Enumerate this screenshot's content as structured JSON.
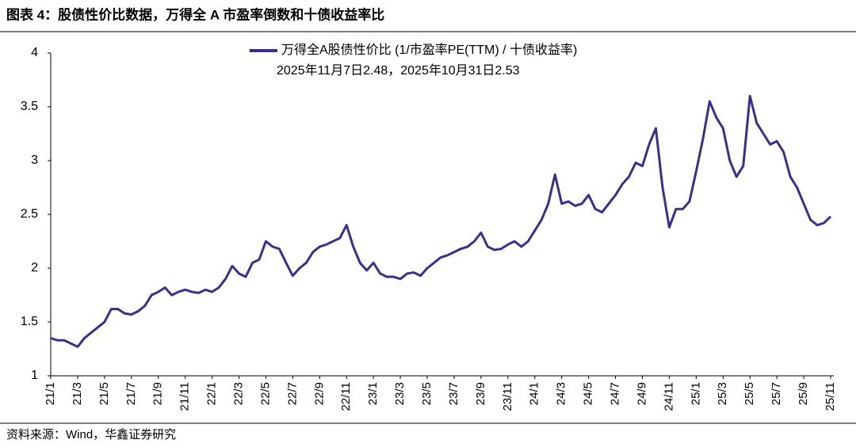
{
  "chart_data": {
    "type": "line",
    "title": "图表 4：股债性价比数据，万得全 A 市盈率倒数和十债收益率比",
    "annotation": "2025年11月7日2.48，2025年10月31日2.53",
    "source": "资料来源：Wind，华鑫证券研究",
    "x": [
      0,
      0.5,
      1,
      1.5,
      2,
      2.5,
      3,
      3.5,
      4,
      4.5,
      5,
      5.5,
      6,
      6.5,
      7,
      7.5,
      8,
      8.5,
      9,
      9.5,
      10,
      10.5,
      11,
      11.5,
      12,
      12.5,
      13,
      13.5,
      14,
      14.5,
      15,
      15.5,
      16,
      16.5,
      17,
      17.5,
      18,
      18.5,
      19,
      19.5,
      20,
      20.5,
      21,
      21.5,
      22,
      22.5,
      23,
      23.5,
      24,
      24.5,
      25,
      25.5,
      26,
      26.5,
      27,
      27.5,
      28,
      28.5,
      29,
      29.5,
      30,
      30.5,
      31,
      31.5,
      32,
      32.5,
      33,
      33.5,
      34,
      34.5,
      35,
      35.5,
      36,
      36.5,
      37,
      37.5,
      38,
      38.5,
      39,
      39.5,
      40,
      40.5,
      41,
      41.5,
      42,
      42.5,
      43,
      43.5,
      44,
      44.5,
      45,
      45.5,
      46,
      46.5,
      47,
      47.5,
      48,
      48.5,
      49,
      49.5,
      50,
      50.5,
      51,
      51.5,
      52,
      52.5,
      53,
      53.5,
      54,
      54.5,
      55,
      55.5,
      56,
      56.5,
      57,
      57.5,
      58
    ],
    "series": [
      {
        "name": "万得全A股债性价比 (1/市盈率PE(TTM) / 十债收益率)",
        "color": "#3f2d8c",
        "values": [
          1.35,
          1.33,
          1.33,
          1.3,
          1.27,
          1.35,
          1.4,
          1.45,
          1.5,
          1.62,
          1.62,
          1.58,
          1.57,
          1.6,
          1.65,
          1.75,
          1.78,
          1.82,
          1.75,
          1.78,
          1.8,
          1.78,
          1.77,
          1.8,
          1.78,
          1.82,
          1.9,
          2.02,
          1.95,
          1.92,
          2.05,
          2.08,
          2.25,
          2.2,
          2.18,
          2.05,
          1.93,
          2.0,
          2.05,
          2.15,
          2.2,
          2.22,
          2.25,
          2.28,
          2.4,
          2.2,
          2.05,
          1.98,
          2.05,
          1.95,
          1.92,
          1.92,
          1.9,
          1.95,
          1.96,
          1.93,
          2.0,
          2.05,
          2.1,
          2.12,
          2.15,
          2.18,
          2.2,
          2.25,
          2.33,
          2.2,
          2.17,
          2.18,
          2.22,
          2.25,
          2.2,
          2.25,
          2.35,
          2.45,
          2.6,
          2.87,
          2.6,
          2.62,
          2.58,
          2.6,
          2.68,
          2.55,
          2.52,
          2.6,
          2.68,
          2.78,
          2.85,
          2.98,
          2.95,
          3.15,
          3.3,
          2.75,
          2.38,
          2.55,
          2.55,
          2.62,
          2.9,
          3.2,
          3.55,
          3.4,
          3.3,
          3.0,
          2.85,
          2.95,
          3.6,
          3.35,
          3.25,
          3.15,
          3.18,
          3.08,
          2.85,
          2.75,
          2.6,
          2.45,
          2.4,
          2.42,
          2.48
        ]
      }
    ],
    "xlim": [
      0,
      58
    ],
    "xticks": [
      {
        "value": 0,
        "label": "21/1"
      },
      {
        "value": 2,
        "label": "21/3"
      },
      {
        "value": 4,
        "label": "21/5"
      },
      {
        "value": 6,
        "label": "21/7"
      },
      {
        "value": 8,
        "label": "21/9"
      },
      {
        "value": 10,
        "label": "21/11"
      },
      {
        "value": 12,
        "label": "22/1"
      },
      {
        "value": 14,
        "label": "22/3"
      },
      {
        "value": 16,
        "label": "22/5"
      },
      {
        "value": 18,
        "label": "22/7"
      },
      {
        "value": 20,
        "label": "22/9"
      },
      {
        "value": 22,
        "label": "22/11"
      },
      {
        "value": 24,
        "label": "23/1"
      },
      {
        "value": 26,
        "label": "23/3"
      },
      {
        "value": 28,
        "label": "23/5"
      },
      {
        "value": 30,
        "label": "23/7"
      },
      {
        "value": 32,
        "label": "23/9"
      },
      {
        "value": 34,
        "label": "23/11"
      },
      {
        "value": 36,
        "label": "24/1"
      },
      {
        "value": 38,
        "label": "24/3"
      },
      {
        "value": 40,
        "label": "24/5"
      },
      {
        "value": 42,
        "label": "24/7"
      },
      {
        "value": 44,
        "label": "24/9"
      },
      {
        "value": 46,
        "label": "24/11"
      },
      {
        "value": 48,
        "label": "25/1"
      },
      {
        "value": 50,
        "label": "25/3"
      },
      {
        "value": 52,
        "label": "25/5"
      },
      {
        "value": 54,
        "label": "25/7"
      },
      {
        "value": 56,
        "label": "25/9"
      },
      {
        "value": 58,
        "label": "25/11"
      }
    ],
    "ylim": [
      1,
      4
    ],
    "yticks": [
      1,
      {
        "value": 1.5,
        "label": "1.5"
      },
      2,
      {
        "value": 2.5,
        "label": "2.5"
      },
      3,
      {
        "value": 3.5,
        "label": "3.5"
      },
      4
    ],
    "grid": false
  }
}
